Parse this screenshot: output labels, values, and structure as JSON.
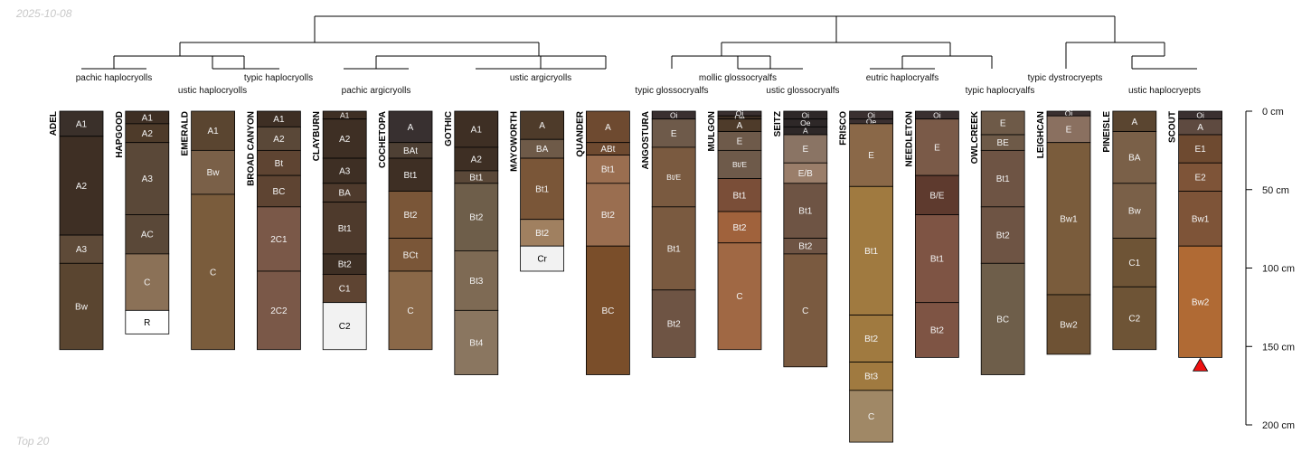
{
  "header": {
    "date": "2025-10-08"
  },
  "footer": {
    "note": "Top 20"
  },
  "depth_axis": {
    "unit": "cm",
    "max_depth": 200,
    "ticks": [
      {
        "depth": 0,
        "label": "0 cm"
      },
      {
        "depth": 50,
        "label": "50 cm"
      },
      {
        "depth": 100,
        "label": "100 cm"
      },
      {
        "depth": 150,
        "label": "150 cm"
      },
      {
        "depth": 200,
        "label": "200 cm"
      }
    ]
  },
  "groups": [
    {
      "label": "pachic haplocryolls",
      "members": [
        0,
        1
      ]
    },
    {
      "label": "ustic haplocryolls",
      "members": [
        2
      ]
    },
    {
      "label": "typic haplocryolls",
      "members": [
        3
      ]
    },
    {
      "label": "pachic argicryolls",
      "members": [
        4,
        5
      ]
    },
    {
      "label": "ustic argicryolls",
      "members": [
        6,
        7,
        8
      ]
    },
    {
      "label": "typic glossocryalfs",
      "members": [
        9
      ]
    },
    {
      "label": "mollic glossocryalfs",
      "members": [
        10,
        11
      ]
    },
    {
      "label": "ustic glossocryalfs",
      "members": [
        11
      ]
    },
    {
      "label": "eutric haplocryalfs",
      "members": [
        12,
        13
      ]
    },
    {
      "label": "typic haplocryalfs",
      "members": [
        14
      ]
    },
    {
      "label": "typic dystrocryepts",
      "members": [
        15
      ]
    },
    {
      "label": "ustic haplocryepts",
      "members": [
        16,
        17
      ]
    }
  ],
  "profiles": [
    {
      "name": "ADEL",
      "horizons": [
        {
          "name": "A1",
          "top": 0,
          "bottom": 16,
          "color": "#3a302a"
        },
        {
          "name": "A2",
          "top": 16,
          "bottom": 79,
          "color": "#3e2f24"
        },
        {
          "name": "A3",
          "top": 79,
          "bottom": 97,
          "color": "#5e4a38"
        },
        {
          "name": "Bw",
          "top": 97,
          "bottom": 152,
          "color": "#5a4530"
        }
      ]
    },
    {
      "name": "HAPGOOD",
      "horizons": [
        {
          "name": "A1",
          "top": 0,
          "bottom": 8,
          "color": "#3e2f24"
        },
        {
          "name": "A2",
          "top": 8,
          "bottom": 20,
          "color": "#4e3b2a"
        },
        {
          "name": "A3",
          "top": 20,
          "bottom": 66,
          "color": "#5a4838"
        },
        {
          "name": "AC",
          "top": 66,
          "bottom": 91,
          "color": "#5a4838"
        },
        {
          "name": "C",
          "top": 91,
          "bottom": 127,
          "color": "#8b7157"
        },
        {
          "name": "R",
          "top": 127,
          "bottom": 142,
          "color": "#ffffff"
        }
      ]
    },
    {
      "name": "EMERALD",
      "horizons": [
        {
          "name": "A1",
          "top": 0,
          "bottom": 25,
          "color": "#5a4530"
        },
        {
          "name": "Bw",
          "top": 25,
          "bottom": 53,
          "color": "#7a6048"
        },
        {
          "name": "C",
          "top": 53,
          "bottom": 152,
          "color": "#7a5c3c"
        }
      ]
    },
    {
      "name": "BROAD CANYON",
      "horizons": [
        {
          "name": "A1",
          "top": 0,
          "bottom": 10,
          "color": "#3e2f24"
        },
        {
          "name": "A2",
          "top": 10,
          "bottom": 25,
          "color": "#5a4838"
        },
        {
          "name": "Bt",
          "top": 25,
          "bottom": 41,
          "color": "#5e4432"
        },
        {
          "name": "BC",
          "top": 41,
          "bottom": 61,
          "color": "#5e4432"
        },
        {
          "name": "2C1",
          "top": 61,
          "bottom": 102,
          "color": "#7a5848"
        },
        {
          "name": "2C2",
          "top": 102,
          "bottom": 152,
          "color": "#7a5848"
        }
      ]
    },
    {
      "name": "CLAYBURN",
      "horizons": [
        {
          "name": "A1",
          "top": 0,
          "bottom": 5,
          "color": "#3e2f24"
        },
        {
          "name": "A2",
          "top": 5,
          "bottom": 30,
          "color": "#3e2f24"
        },
        {
          "name": "A3",
          "top": 30,
          "bottom": 46,
          "color": "#3e2f24"
        },
        {
          "name": "BA",
          "top": 46,
          "bottom": 58,
          "color": "#4e3a2c"
        },
        {
          "name": "Bt1",
          "top": 58,
          "bottom": 91,
          "color": "#4e3a2c"
        },
        {
          "name": "Bt2",
          "top": 91,
          "bottom": 104,
          "color": "#3e2f24"
        },
        {
          "name": "C1",
          "top": 104,
          "bottom": 122,
          "color": "#5e4432"
        },
        {
          "name": "C2",
          "top": 122,
          "bottom": 152,
          "color": "#f2f2f2"
        }
      ]
    },
    {
      "name": "COCHETOPA",
      "horizons": [
        {
          "name": "A",
          "top": 0,
          "bottom": 20,
          "color": "#383030"
        },
        {
          "name": "BAt",
          "top": 20,
          "bottom": 30,
          "color": "#4e4034"
        },
        {
          "name": "Bt1",
          "top": 30,
          "bottom": 51,
          "color": "#3e2f24"
        },
        {
          "name": "Bt2",
          "top": 51,
          "bottom": 81,
          "color": "#7a5638"
        },
        {
          "name": "BCt",
          "top": 81,
          "bottom": 102,
          "color": "#7a5638"
        },
        {
          "name": "C",
          "top": 102,
          "bottom": 152,
          "color": "#8a6848"
        }
      ]
    },
    {
      "name": "GOTHIC",
      "horizons": [
        {
          "name": "A1",
          "top": 0,
          "bottom": 23,
          "color": "#3e2f24"
        },
        {
          "name": "A2",
          "top": 23,
          "bottom": 38,
          "color": "#3e2f24"
        },
        {
          "name": "Bt1",
          "top": 38,
          "bottom": 46,
          "color": "#5a4838"
        },
        {
          "name": "Bt2",
          "top": 46,
          "bottom": 89,
          "color": "#6e5e4a"
        },
        {
          "name": "Bt3",
          "top": 89,
          "bottom": 127,
          "color": "#7e6a54"
        },
        {
          "name": "Bt4",
          "top": 127,
          "bottom": 168,
          "color": "#8a7660"
        }
      ]
    },
    {
      "name": "MAYOWORTH",
      "horizons": [
        {
          "name": "A",
          "top": 0,
          "bottom": 18,
          "color": "#4e3b2a"
        },
        {
          "name": "BA",
          "top": 18,
          "bottom": 30,
          "color": "#6e5a48"
        },
        {
          "name": "Bt1",
          "top": 30,
          "bottom": 69,
          "color": "#7a5638"
        },
        {
          "name": "Bt2",
          "top": 69,
          "bottom": 86,
          "color": "#a08060"
        },
        {
          "name": "Cr",
          "top": 86,
          "bottom": 102,
          "color": "#f2f2f2"
        }
      ]
    },
    {
      "name": "QUANDER",
      "horizons": [
        {
          "name": "A",
          "top": 0,
          "bottom": 20,
          "color": "#6e4a30"
        },
        {
          "name": "ABt",
          "top": 20,
          "bottom": 28,
          "color": "#6e4a30"
        },
        {
          "name": "Bt1",
          "top": 28,
          "bottom": 46,
          "color": "#9a6e50"
        },
        {
          "name": "Bt2",
          "top": 46,
          "bottom": 86,
          "color": "#9a6e50"
        },
        {
          "name": "BC",
          "top": 86,
          "bottom": 168,
          "color": "#7a4e2a"
        }
      ]
    },
    {
      "name": "ANGOSTURA",
      "horizons": [
        {
          "name": "Oi",
          "top": 0,
          "bottom": 5,
          "color": "#3a3030"
        },
        {
          "name": "E",
          "top": 5,
          "bottom": 23,
          "color": "#6e5a4a"
        },
        {
          "name": "Bt/E",
          "top": 23,
          "bottom": 61,
          "color": "#7a5a40"
        },
        {
          "name": "Bt1",
          "top": 61,
          "bottom": 114,
          "color": "#7a5a40"
        },
        {
          "name": "Bt2",
          "top": 114,
          "bottom": 157,
          "color": "#6e5444"
        }
      ]
    },
    {
      "name": "MULGON",
      "horizons": [
        {
          "name": "Oi",
          "top": 0,
          "bottom": 3,
          "color": "#3a3030"
        },
        {
          "name": "Oe",
          "top": 3,
          "bottom": 5,
          "color": "#3e2f24"
        },
        {
          "name": "A",
          "top": 5,
          "bottom": 13,
          "color": "#4e3b2a"
        },
        {
          "name": "E",
          "top": 13,
          "bottom": 25,
          "color": "#6e5a4a"
        },
        {
          "name": "Bt/E",
          "top": 25,
          "bottom": 43,
          "color": "#6e5a4a"
        },
        {
          "name": "Bt1",
          "top": 43,
          "bottom": 64,
          "color": "#7a4e38"
        },
        {
          "name": "Bt2",
          "top": 64,
          "bottom": 84,
          "color": "#a0623c"
        },
        {
          "name": "C",
          "top": 84,
          "bottom": 152,
          "color": "#a06844"
        }
      ]
    },
    {
      "name": "SEITZ",
      "horizons": [
        {
          "name": "Oi",
          "top": 0,
          "bottom": 5,
          "color": "#2e2828"
        },
        {
          "name": "Oe",
          "top": 5,
          "bottom": 10,
          "color": "#2e2828"
        },
        {
          "name": "A",
          "top": 10,
          "bottom": 15,
          "color": "#2e2828"
        },
        {
          "name": "E",
          "top": 15,
          "bottom": 33,
          "color": "#8a7464"
        },
        {
          "name": "E/B",
          "top": 33,
          "bottom": 46,
          "color": "#9a7e6a"
        },
        {
          "name": "Bt1",
          "top": 46,
          "bottom": 81,
          "color": "#6e5444"
        },
        {
          "name": "Bt2",
          "top": 81,
          "bottom": 91,
          "color": "#6e5444"
        },
        {
          "name": "C",
          "top": 91,
          "bottom": 163,
          "color": "#7a5a40"
        }
      ]
    },
    {
      "name": "FRISCO",
      "horizons": [
        {
          "name": "Oi",
          "top": 0,
          "bottom": 5,
          "color": "#3a3030"
        },
        {
          "name": "Oe",
          "top": 5,
          "bottom": 8,
          "color": "#3a3030"
        },
        {
          "name": "E",
          "top": 8,
          "bottom": 48,
          "color": "#8a6848"
        },
        {
          "name": "Bt1",
          "top": 48,
          "bottom": 130,
          "color": "#a07a40"
        },
        {
          "name": "Bt2",
          "top": 130,
          "bottom": 160,
          "color": "#a07a40"
        },
        {
          "name": "Bt3",
          "top": 160,
          "bottom": 178,
          "color": "#a07a40"
        },
        {
          "name": "C",
          "top": 178,
          "bottom": 211,
          "color": "#a08866"
        }
      ]
    },
    {
      "name": "NEEDLETON",
      "horizons": [
        {
          "name": "Oi",
          "top": 0,
          "bottom": 5,
          "color": "#3a3030"
        },
        {
          "name": "E",
          "top": 5,
          "bottom": 41,
          "color": "#7a5a48"
        },
        {
          "name": "B/E",
          "top": 41,
          "bottom": 66,
          "color": "#5e3a2e"
        },
        {
          "name": "Bt1",
          "top": 66,
          "bottom": 122,
          "color": "#7e5444"
        },
        {
          "name": "Bt2",
          "top": 122,
          "bottom": 157,
          "color": "#7e5444"
        }
      ]
    },
    {
      "name": "OWLCREEK",
      "horizons": [
        {
          "name": "E",
          "top": 0,
          "bottom": 15,
          "color": "#6e5a48"
        },
        {
          "name": "BE",
          "top": 15,
          "bottom": 25,
          "color": "#6e5a48"
        },
        {
          "name": "Bt1",
          "top": 25,
          "bottom": 61,
          "color": "#6e5444"
        },
        {
          "name": "Bt2",
          "top": 61,
          "bottom": 97,
          "color": "#6e5444"
        },
        {
          "name": "BC",
          "top": 97,
          "bottom": 168,
          "color": "#6e5e4a"
        }
      ]
    },
    {
      "name": "LEIGHCAN",
      "horizons": [
        {
          "name": "Oi",
          "top": 0,
          "bottom": 3,
          "color": "#3a3030"
        },
        {
          "name": "E",
          "top": 3,
          "bottom": 20,
          "color": "#8a7060"
        },
        {
          "name": "Bw1",
          "top": 20,
          "bottom": 117,
          "color": "#7a5c3c"
        },
        {
          "name": "Bw2",
          "top": 117,
          "bottom": 155,
          "color": "#6e5234"
        }
      ]
    },
    {
      "name": "PINEISLE",
      "horizons": [
        {
          "name": "A",
          "top": 0,
          "bottom": 13,
          "color": "#5a4530"
        },
        {
          "name": "BA",
          "top": 13,
          "bottom": 46,
          "color": "#7a6048"
        },
        {
          "name": "Bw",
          "top": 46,
          "bottom": 81,
          "color": "#7a6048"
        },
        {
          "name": "C1",
          "top": 81,
          "bottom": 112,
          "color": "#6e5436"
        },
        {
          "name": "C2",
          "top": 112,
          "bottom": 152,
          "color": "#6e5436"
        }
      ]
    },
    {
      "name": "SCOUT",
      "horizons": [
        {
          "name": "Oi",
          "top": 0,
          "bottom": 5,
          "color": "#3a3030"
        },
        {
          "name": "A",
          "top": 5,
          "bottom": 15,
          "color": "#5e4a40"
        },
        {
          "name": "E1",
          "top": 15,
          "bottom": 33,
          "color": "#6e4a30"
        },
        {
          "name": "E2",
          "top": 33,
          "bottom": 51,
          "color": "#7e5438"
        },
        {
          "name": "Bw1",
          "top": 51,
          "bottom": 86,
          "color": "#7e5438"
        },
        {
          "name": "Bw2",
          "top": 86,
          "bottom": 157,
          "color": "#b06a34"
        }
      ]
    }
  ]
}
